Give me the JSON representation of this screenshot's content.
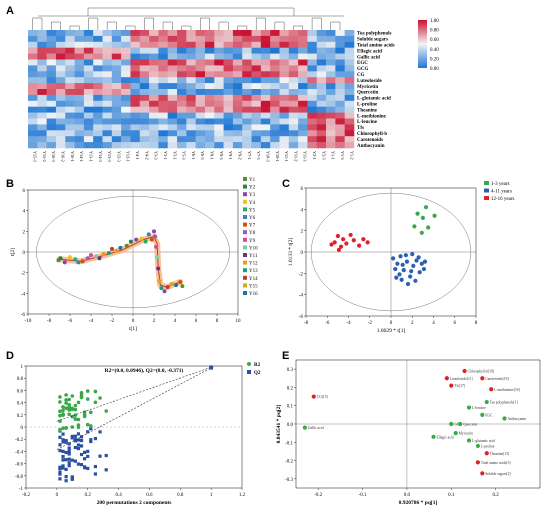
{
  "panels": {
    "A": "A",
    "B": "B",
    "C": "C",
    "D": "D",
    "E": "E"
  },
  "colors": {
    "heat_high": "#c8102e",
    "heat_mid": "#f4f4f4",
    "heat_low": "#1f77d4",
    "green": "#3aa84a",
    "red": "#e01f26",
    "blue": "#2b5fb2",
    "orange": "#e8743b"
  },
  "chart_data": [
    {
      "panel": "A",
      "type": "heatmap",
      "rows": [
        "Tea polyphenols",
        "Soluble sugars",
        "Total amino acids",
        "Ellagic acid",
        "Gallic acid",
        "EGC",
        "GCG",
        "CG",
        "Luteoloside",
        "Myricetin",
        "Quercetin",
        "L-glutamic acid",
        "L-proline",
        "Theanine",
        "L-methionine",
        "L-leucine",
        "Tfs",
        "Chlorophyll-b",
        "Carotenoids",
        "Anthocyanin"
      ],
      "columns": [
        "Y15-3",
        "Y15-2",
        "Y16-3",
        "Y16-2",
        "Y16-1",
        "Y14-1",
        "Y13-1",
        "Y14-3",
        "Y13-3",
        "Y12-3",
        "Y12-1",
        "Y4-1",
        "Y4-2",
        "Y3-3",
        "Y3-1",
        "Y5-1",
        "Y5-3",
        "Y6-1",
        "Y6-3",
        "Y8-1",
        "Y8-3",
        "Y9-1",
        "Y9-2",
        "Y7-1",
        "Y7-3",
        "Y10-3",
        "Y10-1",
        "Y11-1",
        "Y11-2",
        "Y11-3",
        "Y2-1",
        "Y2-3",
        "Y1-1",
        "Y1-3",
        "Y1-2"
      ],
      "legend_ticks": [
        "1.00",
        "0.80",
        "0.60",
        "0.40",
        "0.20",
        "0.00"
      ],
      "legend_range": [
        0,
        1
      ]
    },
    {
      "panel": "B",
      "type": "scatter",
      "xlabel": "t[1]",
      "ylabel": "t[2]",
      "xticks": [
        "-10",
        "-8",
        "-6",
        "-4",
        "-2",
        "0",
        "2",
        "4",
        "6",
        "8",
        "10"
      ],
      "yticks": [
        "-6",
        "-4",
        "-2",
        "0",
        "2",
        "4",
        "6"
      ],
      "xlim": [
        -10,
        10
      ],
      "ylim": [
        -6,
        6
      ],
      "legend": [
        "Y1",
        "Y2",
        "Y3",
        "Y4",
        "Y5",
        "Y6",
        "Y7",
        "Y8",
        "Y9",
        "Y10",
        "Y11",
        "Y12",
        "Y13",
        "Y14",
        "Y15",
        "Y16"
      ],
      "legend_colors": [
        "#5a8f2e",
        "#1e8449",
        "#8e44ad",
        "#f1c40f",
        "#27ae60",
        "#2e86c1",
        "#d35400",
        "#9b59b6",
        "#e84393",
        "#7dcea0",
        "#6c3483",
        "#f39c12",
        "#16a085",
        "#c0392b",
        "#d4ac0d",
        "#2471a3"
      ],
      "trajectory": [
        [
          -7,
          -0.7
        ],
        [
          -5,
          -0.9
        ],
        [
          -3,
          -0.4
        ],
        [
          -1,
          0.2
        ],
        [
          1,
          1.2
        ],
        [
          2,
          1.5
        ],
        [
          2.3,
          0.8
        ],
        [
          2.4,
          -1.5
        ],
        [
          2.6,
          -3.2
        ],
        [
          3.2,
          -3.4
        ],
        [
          4.5,
          -2.9
        ]
      ],
      "points": [
        [
          -7.1,
          -0.8,
          0
        ],
        [
          -6.9,
          -0.6,
          1
        ],
        [
          -6.5,
          -1.0,
          2
        ],
        [
          -6.0,
          -0.5,
          3
        ],
        [
          -5.5,
          -0.7,
          4
        ],
        [
          -5.2,
          -1.0,
          5
        ],
        [
          -4.8,
          -0.9,
          6
        ],
        [
          -4.3,
          -0.6,
          7
        ],
        [
          -4.0,
          -0.3,
          8
        ],
        [
          -3.5,
          -0.4,
          9
        ],
        [
          -3.2,
          -0.6,
          10
        ],
        [
          -2.8,
          -0.2,
          11
        ],
        [
          -2.3,
          -0.1,
          12
        ],
        [
          -2.0,
          0.3,
          13
        ],
        [
          -1.6,
          0.1,
          14
        ],
        [
          -1.2,
          0.4,
          15
        ],
        [
          -0.6,
          0.6,
          0
        ],
        [
          -0.2,
          1.0,
          1
        ],
        [
          0.3,
          1.2,
          2
        ],
        [
          0.8,
          1.3,
          3
        ],
        [
          1.2,
          1.0,
          4
        ],
        [
          1.5,
          1.7,
          5
        ],
        [
          1.8,
          1.2,
          6
        ],
        [
          2.0,
          2.0,
          2
        ],
        [
          2.1,
          1.5,
          7
        ],
        [
          2.2,
          0.5,
          8
        ],
        [
          2.3,
          -0.5,
          9
        ],
        [
          2.4,
          -1.6,
          10
        ],
        [
          2.5,
          -2.8,
          11
        ],
        [
          2.7,
          -3.5,
          12
        ],
        [
          3.0,
          -3.8,
          2
        ],
        [
          3.3,
          -3.4,
          13
        ],
        [
          3.7,
          -3.1,
          14
        ],
        [
          4.1,
          -3.2,
          15
        ],
        [
          4.5,
          -2.9,
          6
        ],
        [
          4.7,
          -3.3,
          0
        ]
      ]
    },
    {
      "panel": "C",
      "type": "scatter",
      "xlabel": "1.0029 * t[1]",
      "ylabel": "1.0133 * t[2]",
      "xticks": [
        "-8",
        "-6",
        "-4",
        "-2",
        "0",
        "2",
        "4",
        "6",
        "8"
      ],
      "yticks": [
        "-6",
        "-4",
        "-2",
        "0",
        "2",
        "4",
        "6"
      ],
      "xlim": [
        -8,
        8
      ],
      "ylim": [
        -6,
        6
      ],
      "legend": [
        "1-3 years",
        "4-11 years",
        "12-16 years"
      ],
      "groups": [
        {
          "color": "#3aa84a",
          "points": [
            [
              2.2,
              2.4
            ],
            [
              2.5,
              3.6
            ],
            [
              3.0,
              3.2
            ],
            [
              3.3,
              4.2
            ],
            [
              3.5,
              2.3
            ],
            [
              4.1,
              3.4
            ],
            [
              2.9,
              1.8
            ]
          ]
        },
        {
          "color": "#2b5fb2",
          "points": [
            [
              0.2,
              -0.6
            ],
            [
              0.6,
              -1.1
            ],
            [
              0.9,
              -0.4
            ],
            [
              1.2,
              -1.7
            ],
            [
              1.5,
              -0.9
            ],
            [
              1.8,
              -2.3
            ],
            [
              2.1,
              -1.3
            ],
            [
              2.4,
              -0.8
            ],
            [
              2.7,
              -1.9
            ],
            [
              1.0,
              -2.6
            ],
            [
              0.4,
              -1.6
            ],
            [
              1.6,
              -3.0
            ],
            [
              2.0,
              -0.2
            ],
            [
              2.9,
              -1.1
            ],
            [
              1.4,
              -0.3
            ],
            [
              0.8,
              -2.1
            ],
            [
              2.3,
              -2.7
            ],
            [
              3.1,
              -1.6
            ],
            [
              1.9,
              -1.8
            ],
            [
              0.5,
              -2.4
            ],
            [
              2.6,
              -0.5
            ],
            [
              1.1,
              -1.2
            ],
            [
              3.2,
              -0.9
            ]
          ]
        },
        {
          "color": "#e01f26",
          "points": [
            [
              -5.3,
              0.9
            ],
            [
              -5.0,
              1.5
            ],
            [
              -4.7,
              0.5
            ],
            [
              -4.5,
              1.2
            ],
            [
              -4.2,
              0.8
            ],
            [
              -5.6,
              0.7
            ],
            [
              -4.9,
              0.2
            ],
            [
              -3.8,
              1.6
            ],
            [
              -3.5,
              1.1
            ],
            [
              -3.0,
              0.6
            ],
            [
              -2.6,
              1.2
            ],
            [
              -2.2,
              0.9
            ]
          ]
        }
      ]
    },
    {
      "panel": "D",
      "type": "scatter",
      "title": "R2=(0.0, 0.0946), Q2=(0.0, -0.371)",
      "xlabel": "200 permutations 2 components",
      "xticks": [
        "-0.2",
        "0",
        "0.2",
        "0.4",
        "0.6",
        "0.8",
        "1",
        "1.2"
      ],
      "yticks": [
        "-1",
        "-0.8",
        "-0.6",
        "-0.4",
        "-0.2",
        "0",
        "0.2",
        "0.4",
        "0.6",
        "0.8",
        "1"
      ],
      "xlim": [
        -0.2,
        1.2
      ],
      "ylim": [
        -1,
        1
      ],
      "legend": [
        "R2",
        "Q2"
      ],
      "r2_line": [
        [
          0,
          0.0946
        ],
        [
          1,
          0.98
        ]
      ],
      "q2_line": [
        [
          0,
          -0.371
        ],
        [
          1,
          0.97
        ]
      ],
      "r2_original": [
        1,
        0.98
      ],
      "q2_original": [
        1,
        0.97
      ]
    },
    {
      "panel": "E",
      "type": "scatter",
      "xlabel": "0.920786 * pq[1]",
      "ylabel": "0.843541 * pq[2]",
      "xticks": [
        "-0.2",
        "-0.1",
        "0.0",
        "0.1",
        "0.2"
      ],
      "yticks": [
        "-0.3",
        "-0.2",
        "-0.1",
        "0.0",
        "0.1",
        "0.2",
        "0.3"
      ],
      "xlim": [
        -0.25,
        0.3
      ],
      "ylim": [
        -0.35,
        0.35
      ],
      "points": [
        {
          "label": "Chlorophyll-b[18]",
          "x": 0.13,
          "y": 0.29,
          "color": "#e01f26"
        },
        {
          "label": "Luteoloside[11]",
          "x": 0.09,
          "y": 0.25,
          "color": "#e01f26"
        },
        {
          "label": "Carotenoids[19]",
          "x": 0.17,
          "y": 0.25,
          "color": "#e01f26"
        },
        {
          "label": "Tfs[17]",
          "x": 0.1,
          "y": 0.21,
          "color": "#e01f26"
        },
        {
          "label": "L-methionine[16]",
          "x": 0.19,
          "y": 0.19,
          "color": "#e01f26"
        },
        {
          "label": "CG[15]",
          "x": -0.21,
          "y": 0.15,
          "color": "#e01f26"
        },
        {
          "label": "Tea polyphenols[1]",
          "x": 0.18,
          "y": 0.12,
          "color": "#3aa84a"
        },
        {
          "label": "L-leucine",
          "x": 0.14,
          "y": 0.09,
          "color": "#3aa84a"
        },
        {
          "label": "EGC",
          "x": 0.17,
          "y": 0.05,
          "color": "#3aa84a"
        },
        {
          "label": "Anthocyanin",
          "x": 0.22,
          "y": 0.03,
          "color": "#3aa84a"
        },
        {
          "label": "GCG",
          "x": 0.1,
          "y": 0.0,
          "color": "#3aa84a"
        },
        {
          "label": "Quercetin",
          "x": 0.12,
          "y": -0.0,
          "color": "#3aa84a"
        },
        {
          "label": "Gallic acid",
          "x": -0.23,
          "y": -0.02,
          "color": "#3aa84a"
        },
        {
          "label": "Myricetin",
          "x": 0.11,
          "y": -0.05,
          "color": "#3aa84a"
        },
        {
          "label": "Ellagic acid",
          "x": 0.06,
          "y": -0.07,
          "color": "#3aa84a"
        },
        {
          "label": "L-glutamic acid",
          "x": 0.14,
          "y": -0.09,
          "color": "#3aa84a"
        },
        {
          "label": "L-proline",
          "x": 0.16,
          "y": -0.12,
          "color": "#3aa84a"
        },
        {
          "label": "Theanine[13]",
          "x": 0.18,
          "y": -0.16,
          "color": "#e01f26"
        },
        {
          "label": "Total amino acids[3]",
          "x": 0.16,
          "y": -0.21,
          "color": "#e01f26"
        },
        {
          "label": "Soluble sugars[2]",
          "x": 0.17,
          "y": -0.27,
          "color": "#e01f26"
        }
      ]
    }
  ]
}
